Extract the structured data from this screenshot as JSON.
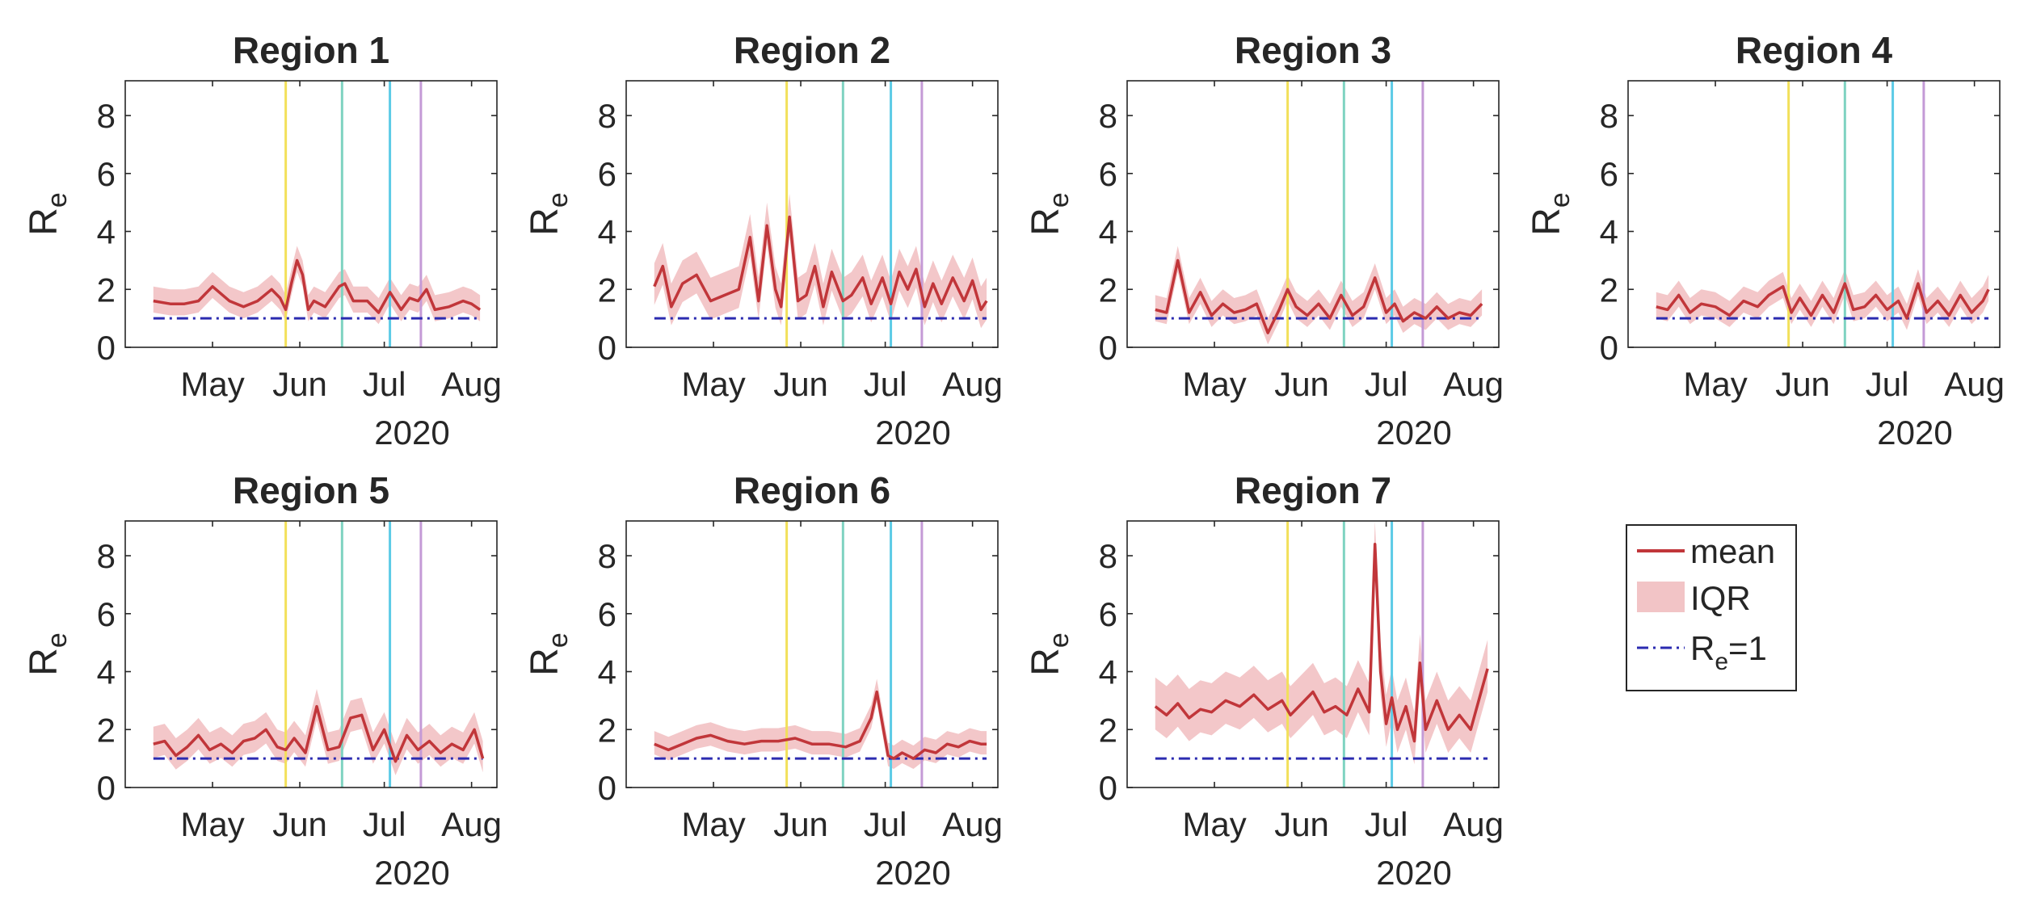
{
  "chart_data": {
    "type": "line",
    "figure_layout": "2x4 grid of small multiples, legend in the eighth cell",
    "x_axis": {
      "ticks": [
        "May",
        "Jun",
        "Jul",
        "Aug"
      ],
      "tick_days": [
        31,
        62,
        92,
        123
      ],
      "year_label": "2020",
      "xlim_days": [
        0,
        132
      ],
      "start_day_label": "Apr 1 2020 = day 1"
    },
    "y_axis": {
      "label_main": "R",
      "label_sub": "e",
      "ylim": [
        0,
        9.2
      ],
      "ticks": [
        "0",
        "2",
        "4",
        "6",
        "8"
      ],
      "tick_values": [
        0,
        2,
        4,
        6,
        8
      ]
    },
    "vertical_lines": [
      {
        "day": 57,
        "color": "#f2e05a"
      },
      {
        "day": 77,
        "color": "#7fd3c1"
      },
      {
        "day": 94,
        "color": "#5ccbe6"
      },
      {
        "day": 105,
        "color": "#c49ad6"
      }
    ],
    "reference_line": {
      "value": 1,
      "color": "#2b2bb0"
    },
    "colors": {
      "mean": "#c1363a",
      "iqr": "#f2c4c6",
      "axis": "#262626"
    },
    "legend": {
      "mean": "mean",
      "iqr": "IQR",
      "ref_main": "R",
      "ref_sub": "e",
      "ref_tail": "=1"
    },
    "panels": [
      {
        "title": "Region 1",
        "x": [
          10,
          16,
          21,
          26,
          31,
          37,
          42,
          47,
          52,
          55,
          57,
          59,
          61,
          63,
          65,
          67,
          71,
          76,
          78,
          81,
          86,
          90,
          94,
          98,
          101,
          104,
          107,
          110,
          115,
          120,
          123,
          126
        ],
        "mean": [
          1.6,
          1.5,
          1.5,
          1.6,
          2.1,
          1.6,
          1.4,
          1.6,
          2.0,
          1.7,
          1.3,
          2.2,
          3.0,
          2.5,
          1.3,
          1.6,
          1.4,
          2.1,
          2.2,
          1.6,
          1.6,
          1.2,
          1.9,
          1.3,
          1.7,
          1.6,
          2.0,
          1.3,
          1.4,
          1.6,
          1.5,
          1.3
        ],
        "spread": 0.5
      },
      {
        "title": "Region 2",
        "x": [
          10,
          13,
          16,
          20,
          25,
          30,
          35,
          40,
          44,
          47,
          50,
          53,
          55,
          58,
          61,
          64,
          67,
          70,
          73,
          77,
          80,
          84,
          87,
          91,
          94,
          97,
          100,
          103,
          106,
          109,
          112,
          116,
          120,
          123,
          126,
          128
        ],
        "mean": [
          2.1,
          2.8,
          1.4,
          2.2,
          2.5,
          1.6,
          1.8,
          2.0,
          3.8,
          1.6,
          4.2,
          2.0,
          1.4,
          4.5,
          1.6,
          1.8,
          2.8,
          1.4,
          2.6,
          1.6,
          1.8,
          2.4,
          1.5,
          2.4,
          1.5,
          2.6,
          2.0,
          2.7,
          1.4,
          2.2,
          1.5,
          2.4,
          1.6,
          2.3,
          1.3,
          1.6
        ],
        "spread": 0.8
      },
      {
        "title": "Region 3",
        "x": [
          10,
          14,
          18,
          22,
          26,
          30,
          34,
          38,
          42,
          46,
          50,
          54,
          57,
          60,
          64,
          68,
          72,
          76,
          80,
          84,
          88,
          92,
          95,
          98,
          102,
          106,
          110,
          114,
          118,
          122,
          126
        ],
        "mean": [
          1.3,
          1.2,
          3.0,
          1.2,
          1.9,
          1.1,
          1.5,
          1.2,
          1.3,
          1.5,
          0.5,
          1.3,
          2.0,
          1.4,
          1.1,
          1.5,
          1.0,
          1.8,
          1.1,
          1.4,
          2.4,
          1.2,
          1.5,
          0.9,
          1.2,
          1.0,
          1.4,
          1.0,
          1.2,
          1.1,
          1.5
        ],
        "spread": 0.5
      },
      {
        "title": "Region 4",
        "x": [
          10,
          14,
          18,
          22,
          26,
          31,
          36,
          41,
          46,
          50,
          55,
          58,
          61,
          65,
          69,
          73,
          77,
          80,
          84,
          88,
          92,
          96,
          99,
          103,
          106,
          110,
          114,
          118,
          122,
          126,
          128
        ],
        "mean": [
          1.4,
          1.3,
          1.8,
          1.2,
          1.5,
          1.4,
          1.1,
          1.6,
          1.4,
          1.8,
          2.1,
          1.2,
          1.7,
          1.1,
          1.8,
          1.2,
          2.2,
          1.3,
          1.4,
          1.8,
          1.3,
          1.6,
          1.0,
          2.2,
          1.2,
          1.6,
          1.1,
          1.8,
          1.2,
          1.6,
          2.0
        ],
        "spread": 0.5
      },
      {
        "title": "Region 5",
        "x": [
          10,
          14,
          18,
          22,
          26,
          30,
          34,
          38,
          42,
          46,
          50,
          54,
          57,
          60,
          64,
          68,
          72,
          76,
          80,
          84,
          88,
          92,
          96,
          100,
          104,
          108,
          112,
          116,
          120,
          124,
          127
        ],
        "mean": [
          1.5,
          1.6,
          1.1,
          1.4,
          1.8,
          1.3,
          1.5,
          1.2,
          1.6,
          1.7,
          2.0,
          1.4,
          1.3,
          1.7,
          1.2,
          2.8,
          1.3,
          1.4,
          2.4,
          2.5,
          1.3,
          2.0,
          0.9,
          1.8,
          1.3,
          1.6,
          1.2,
          1.5,
          1.3,
          2.0,
          1.0
        ],
        "spread": 0.6
      },
      {
        "title": "Region 6",
        "x": [
          10,
          15,
          20,
          25,
          30,
          36,
          42,
          48,
          54,
          60,
          66,
          72,
          78,
          83,
          87,
          89,
          91,
          93,
          95,
          98,
          102,
          106,
          110,
          114,
          118,
          122,
          126,
          128
        ],
        "mean": [
          1.5,
          1.3,
          1.5,
          1.7,
          1.8,
          1.6,
          1.5,
          1.6,
          1.6,
          1.7,
          1.5,
          1.5,
          1.4,
          1.6,
          2.4,
          3.3,
          2.2,
          1.1,
          1.0,
          1.2,
          1.0,
          1.3,
          1.2,
          1.5,
          1.4,
          1.6,
          1.5,
          1.5
        ],
        "spread": 0.45
      },
      {
        "title": "Region 7",
        "x": [
          10,
          14,
          18,
          22,
          26,
          30,
          35,
          40,
          45,
          50,
          55,
          58,
          62,
          66,
          70,
          74,
          78,
          82,
          86,
          88,
          90,
          92,
          94,
          96,
          99,
          102,
          104,
          106,
          110,
          114,
          118,
          122,
          126,
          128
        ],
        "mean": [
          2.8,
          2.5,
          2.9,
          2.4,
          2.7,
          2.6,
          3.0,
          2.8,
          3.2,
          2.7,
          3.0,
          2.5,
          2.9,
          3.3,
          2.6,
          2.8,
          2.5,
          3.4,
          2.6,
          8.4,
          4.0,
          2.2,
          3.1,
          2.0,
          2.8,
          1.6,
          4.3,
          2.0,
          3.0,
          2.0,
          2.5,
          2.0,
          3.4,
          4.1
        ],
        "spread": 1.0
      }
    ]
  }
}
